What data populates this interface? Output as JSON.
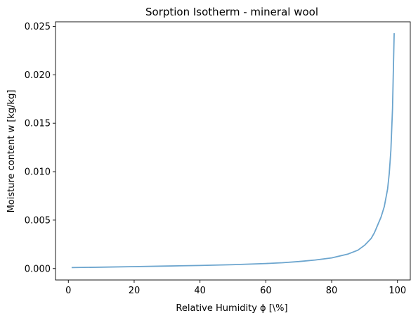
{
  "chart_data": {
    "type": "line",
    "title": "Sorption Isotherm - mineral wool",
    "xlabel": "Relative Humidity ϕ [\\%]",
    "ylabel": "Moisture content w [kg/kg]",
    "xlim": [
      -3.9,
      103.9
    ],
    "ylim": [
      -0.00118,
      0.02547
    ],
    "xticks": [
      0,
      20,
      40,
      60,
      80,
      100
    ],
    "xtick_labels": [
      "0",
      "20",
      "40",
      "60",
      "80",
      "100"
    ],
    "yticks": [
      0.0,
      0.005,
      0.01,
      0.015,
      0.02,
      0.025
    ],
    "ytick_labels": [
      "0.000",
      "0.005",
      "0.010",
      "0.015",
      "0.020",
      "0.025"
    ],
    "grid": false,
    "legend": false,
    "colors": {
      "line": "#6ca5ce",
      "axes": "#000000",
      "background": "#ffffff"
    },
    "series": [
      {
        "x": [
          1,
          10,
          20,
          30,
          40,
          50,
          60,
          65,
          70,
          75,
          80,
          85,
          88,
          90,
          92,
          93,
          94,
          95,
          96,
          97,
          97.5,
          98,
          98.5,
          99
        ],
        "y": [
          0.0001,
          0.00014,
          0.0002,
          0.00026,
          0.00032,
          0.0004,
          0.00052,
          0.0006,
          0.00072,
          0.00088,
          0.0011,
          0.0015,
          0.0019,
          0.0024,
          0.0031,
          0.0037,
          0.0045,
          0.0053,
          0.0064,
          0.0082,
          0.0098,
          0.0122,
          0.0165,
          0.0243
        ]
      }
    ]
  }
}
